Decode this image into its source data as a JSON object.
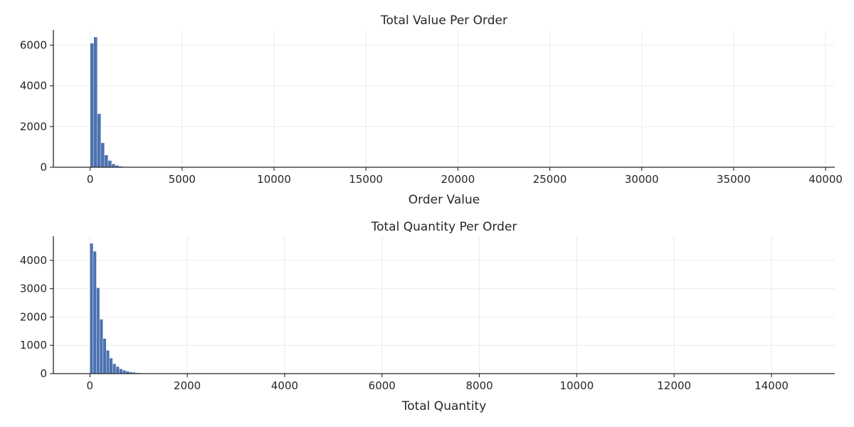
{
  "colors": {
    "bar": "#4c72b0",
    "grid": "#ebebeb",
    "axis": "#262626",
    "background": "#ffffff"
  },
  "chart_data": [
    {
      "type": "bar",
      "title": "Total Value Per Order",
      "xlabel": "Order Value",
      "ylabel": "",
      "grid": true,
      "xlim": [
        -2000,
        40500
      ],
      "ylim": [
        0,
        6750
      ],
      "xticks": [
        0,
        5000,
        10000,
        15000,
        20000,
        25000,
        30000,
        35000,
        40000
      ],
      "xtick_labels": [
        "0",
        "5000",
        "10000",
        "15000",
        "20000",
        "25000",
        "30000",
        "35000",
        "40000"
      ],
      "yticks": [
        0,
        2000,
        4000,
        6000
      ],
      "ytick_labels": [
        "0",
        "2000",
        "4000",
        "6000"
      ],
      "bin_width": 195,
      "bin_start": 0,
      "values": [
        6100,
        6400,
        2630,
        1200,
        600,
        330,
        160,
        90,
        50,
        30,
        20,
        12,
        8,
        6,
        4,
        3,
        2,
        2,
        1,
        1,
        1
      ]
    },
    {
      "type": "bar",
      "title": "Total Quantity Per Order",
      "xlabel": "Total Quantity",
      "ylabel": "",
      "grid": true,
      "xlim": [
        -750,
        15300
      ],
      "ylim": [
        0,
        4850
      ],
      "xticks": [
        0,
        2000,
        4000,
        6000,
        8000,
        10000,
        12000,
        14000
      ],
      "xtick_labels": [
        "0",
        "2000",
        "4000",
        "6000",
        "8000",
        "10000",
        "12000",
        "14000"
      ],
      "yticks": [
        0,
        1000,
        2000,
        3000,
        4000
      ],
      "ytick_labels": [
        "0",
        "1000",
        "2000",
        "3000",
        "4000"
      ],
      "bin_width": 67,
      "bin_start": 0,
      "values": [
        4600,
        4320,
        3030,
        1920,
        1240,
        820,
        550,
        350,
        250,
        170,
        120,
        85,
        60,
        45,
        30,
        22,
        15,
        10,
        8,
        6,
        5,
        4,
        3,
        3,
        2,
        2,
        1,
        1
      ]
    }
  ]
}
